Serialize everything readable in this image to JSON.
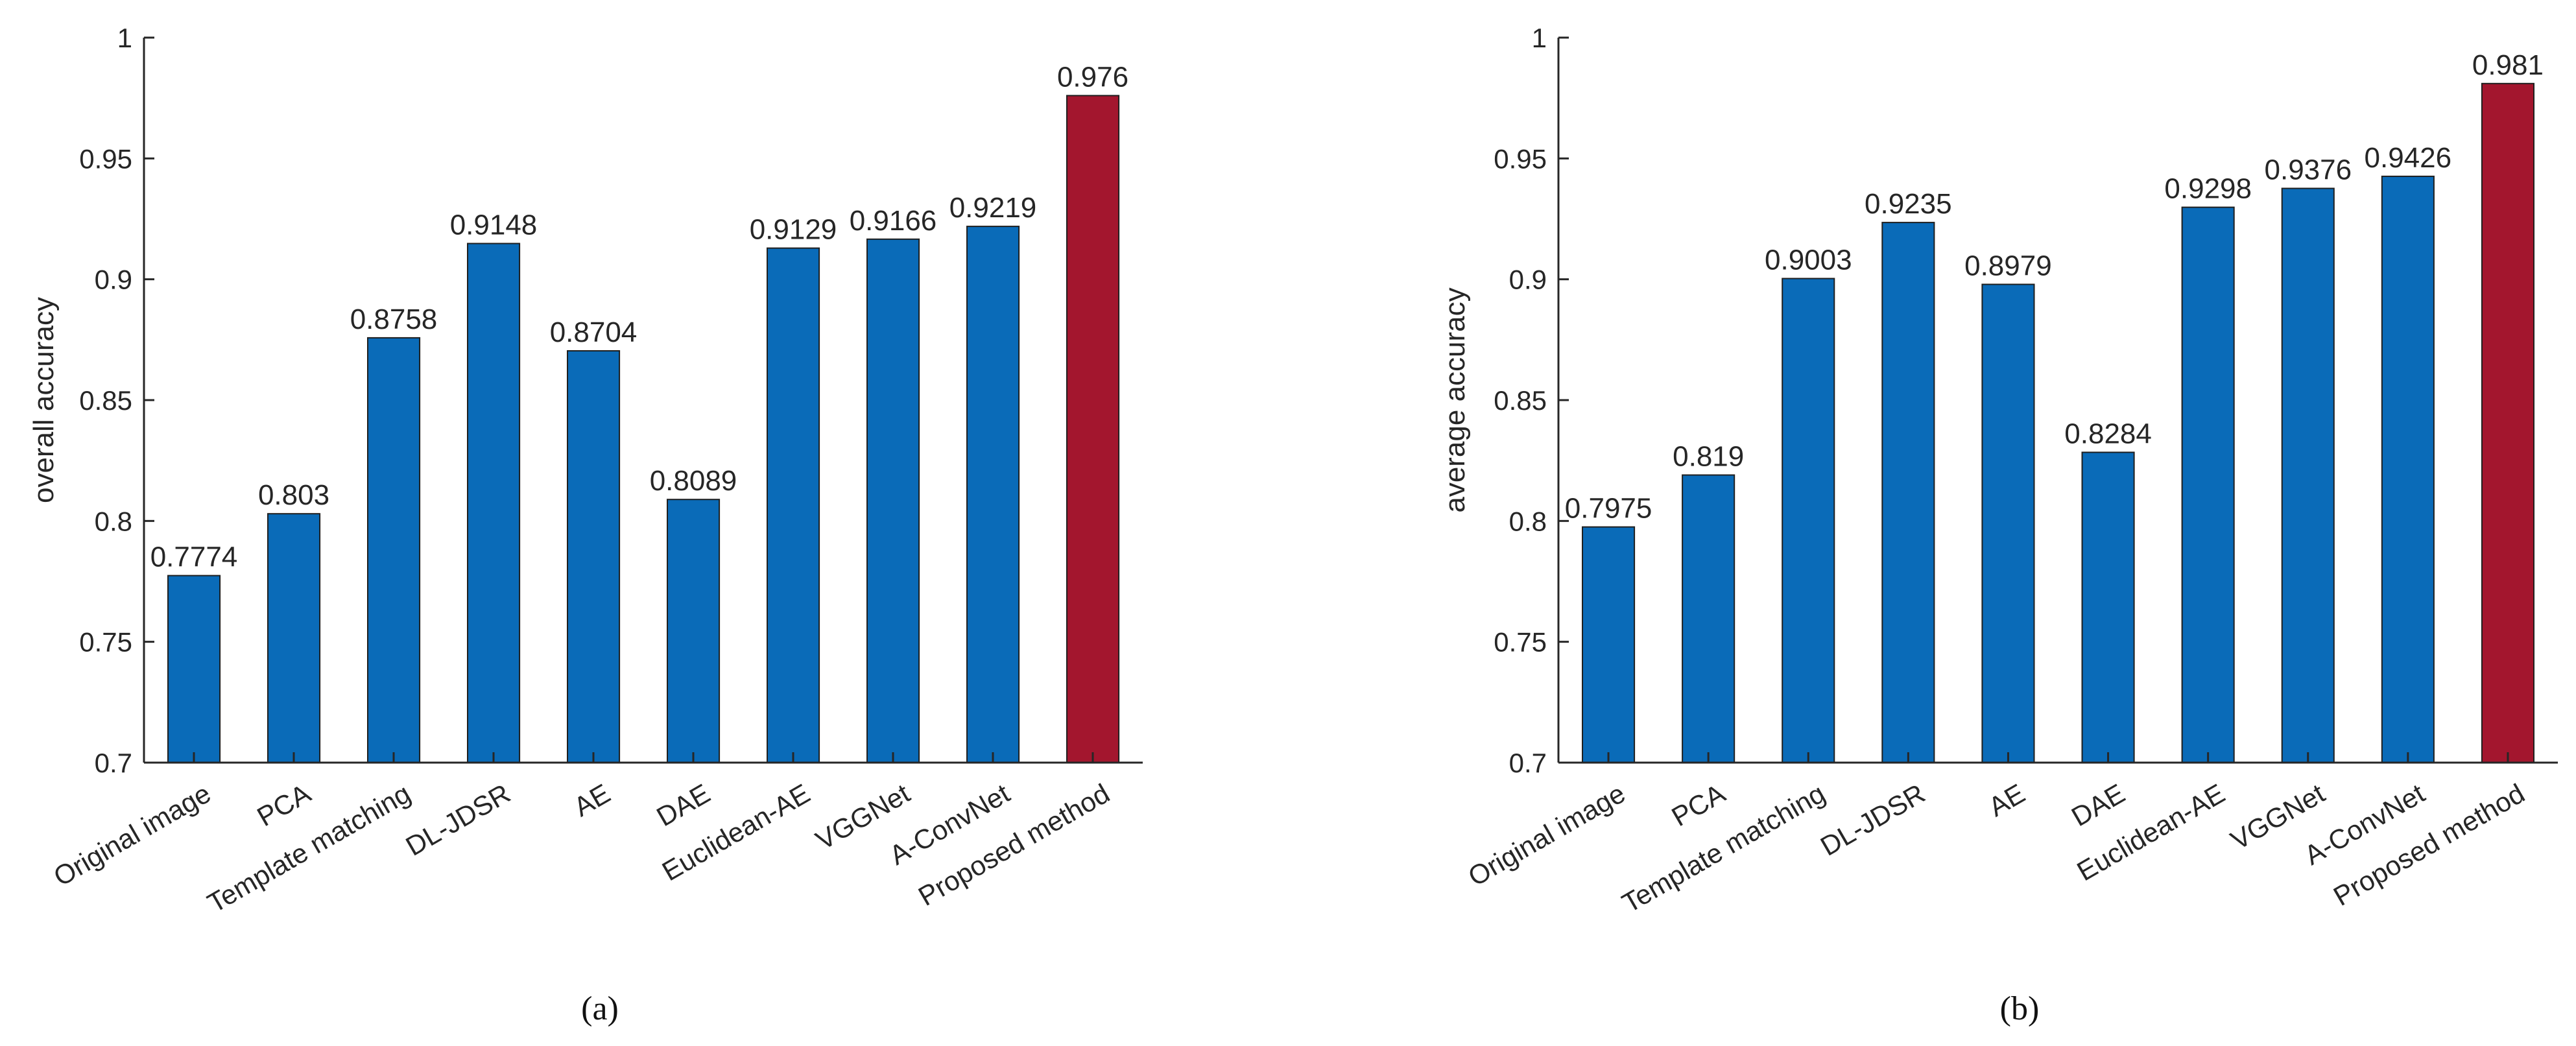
{
  "colors": {
    "bar_default": "#0a6bb8",
    "bar_highlight": "#a3162e",
    "axis": "#262626",
    "text": "#262626"
  },
  "chart_data": [
    {
      "type": "bar",
      "panel_label": "a",
      "caption": "(a)",
      "title": "",
      "xlabel": "",
      "ylabel": "overall accuracy",
      "ylim": [
        0.7,
        1.0
      ],
      "yticks": [
        0.7,
        0.75,
        0.8,
        0.85,
        0.9,
        0.95,
        1.0
      ],
      "ytick_labels": [
        "0.7",
        "0.75",
        "0.8",
        "0.85",
        "0.9",
        "0.95",
        "1"
      ],
      "grid": false,
      "categories": [
        "Original image",
        "PCA",
        "Template matching",
        "DL-JDSR",
        "AE",
        "DAE",
        "Euclidean-AE",
        "VGGNet",
        "A-ConvNet",
        "Proposed method"
      ],
      "values": [
        0.7774,
        0.803,
        0.8758,
        0.9148,
        0.8704,
        0.8089,
        0.9129,
        0.9166,
        0.9219,
        0.976
      ],
      "value_labels": [
        "0.7774",
        "0.803",
        "0.8758",
        "0.9148",
        "0.8704",
        "0.8089",
        "0.9129",
        "0.9166",
        "0.9219",
        "0.976"
      ],
      "highlight_index": 9
    },
    {
      "type": "bar",
      "panel_label": "b",
      "caption": "(b)",
      "title": "",
      "xlabel": "",
      "ylabel": "average accuracy",
      "ylim": [
        0.7,
        1.0
      ],
      "yticks": [
        0.7,
        0.75,
        0.8,
        0.85,
        0.9,
        0.95,
        1.0
      ],
      "ytick_labels": [
        "0.7",
        "0.75",
        "0.8",
        "0.85",
        "0.9",
        "0.95",
        "1"
      ],
      "grid": false,
      "categories": [
        "Original image",
        "PCA",
        "Template matching",
        "DL-JDSR",
        "AE",
        "DAE",
        "Euclidean-AE",
        "VGGNet",
        "A-ConvNet",
        "Proposed method"
      ],
      "values": [
        0.7975,
        0.819,
        0.9003,
        0.9235,
        0.8979,
        0.8284,
        0.9298,
        0.9376,
        0.9426,
        0.981
      ],
      "value_labels": [
        "0.7975",
        "0.819",
        "0.9003",
        "0.9235",
        "0.8979",
        "0.8284",
        "0.9298",
        "0.9376",
        "0.9426",
        "0.981"
      ],
      "highlight_index": 9
    }
  ]
}
